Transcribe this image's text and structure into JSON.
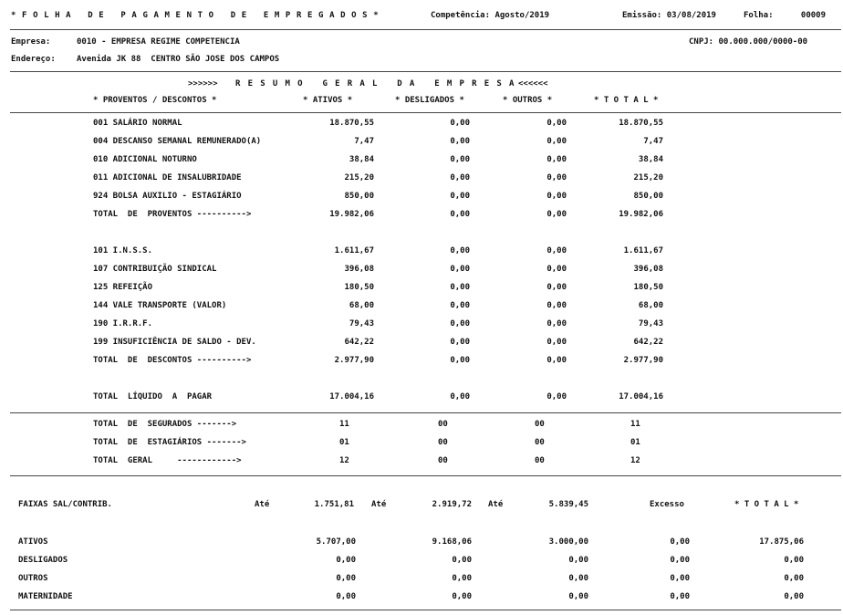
{
  "header": {
    "title": "* F O L H A   D E   P A G A M E N T O   D E   E M P R E G A D O S *",
    "competencia": "Competência: Agosto/2019",
    "emissao": "Emissão: 03/08/2019",
    "folha_label": "Folha:",
    "folha_num": "00009"
  },
  "empresa": {
    "label": "Empresa:",
    "value": "0010 - EMPRESA REGIME COMPETENCIA",
    "cnpj": "CNPJ: 00.000.000/0000-00",
    "endereco_label": "Endereço:",
    "endereco": "Avenida JK 88  CENTRO SÃO JOSE DOS CAMPOS"
  },
  "resumo": {
    "title_open": ">>>>>>",
    "title": "R E S U M O   G E R A L   D A   E M P R E S A",
    "title_close": "<<<<<<",
    "columns": [
      "* PROVENTOS / DESCONTOS *",
      "* ATIVOS *",
      "* DESLIGADOS *",
      "* OUTROS *",
      "* T O T A L *"
    ]
  },
  "proventos": [
    {
      "desc": "001 SALÁRIO NORMAL",
      "ativos": "18.870,55",
      "desligados": "0,00",
      "outros": "0,00",
      "total": "18.870,55"
    },
    {
      "desc": "004 DESCANSO SEMANAL REMUNERADO(A)",
      "ativos": "7,47",
      "desligados": "0,00",
      "outros": "0,00",
      "total": "7,47"
    },
    {
      "desc": "010 ADICIONAL NOTURNO",
      "ativos": "38,84",
      "desligados": "0,00",
      "outros": "0,00",
      "total": "38,84"
    },
    {
      "desc": "011 ADICIONAL DE INSALUBRIDADE",
      "ativos": "215,20",
      "desligados": "0,00",
      "outros": "0,00",
      "total": "215,20"
    },
    {
      "desc": "924 BOLSA AUXILIO - ESTAGIÁRIO",
      "ativos": "850,00",
      "desligados": "0,00",
      "outros": "0,00",
      "total": "850,00"
    },
    {
      "desc": "TOTAL  DE  PROVENTOS ---------->",
      "ativos": "19.982,06",
      "desligados": "0,00",
      "outros": "0,00",
      "total": "19.982,06"
    }
  ],
  "descontos": [
    {
      "desc": "101 I.N.S.S.",
      "ativos": "1.611,67",
      "desligados": "0,00",
      "outros": "0,00",
      "total": "1.611,67"
    },
    {
      "desc": "107 CONTRIBUIÇÃO SINDICAL",
      "ativos": "396,08",
      "desligados": "0,00",
      "outros": "0,00",
      "total": "396,08"
    },
    {
      "desc": "125 REFEIÇÃO",
      "ativos": "180,50",
      "desligados": "0,00",
      "outros": "0,00",
      "total": "180,50"
    },
    {
      "desc": "144 VALE TRANSPORTE (VALOR)",
      "ativos": "68,00",
      "desligados": "0,00",
      "outros": "0,00",
      "total": "68,00"
    },
    {
      "desc": "190 I.R.R.F.",
      "ativos": "79,43",
      "desligados": "0,00",
      "outros": "0,00",
      "total": "79,43"
    },
    {
      "desc": "199 INSUFICIÊNCIA DE SALDO - DEV.",
      "ativos": "642,22",
      "desligados": "0,00",
      "outros": "0,00",
      "total": "642,22"
    },
    {
      "desc": "TOTAL  DE  DESCONTOS ---------->",
      "ativos": "2.977,90",
      "desligados": "0,00",
      "outros": "0,00",
      "total": "2.977,90"
    }
  ],
  "liquido": {
    "desc": "TOTAL  LÍQUIDO  A  PAGAR",
    "ativos": "17.004,16",
    "desligados": "0,00",
    "outros": "0,00",
    "total": "17.004,16"
  },
  "contagens": [
    {
      "desc": "TOTAL  DE  SEGURADOS ------->",
      "ativos": "11",
      "desligados": "00",
      "outros": "00",
      "total": "11"
    },
    {
      "desc": "TOTAL  DE  ESTAGIÁRIOS ------->",
      "ativos": "01",
      "desligados": "00",
      "outros": "00",
      "total": "01"
    },
    {
      "desc": "TOTAL  GERAL     ------------>",
      "ativos": "12",
      "desligados": "00",
      "outros": "00",
      "total": "12"
    }
  ],
  "faixas": {
    "label": "FAIXAS SAL/CONTRIB.",
    "ate_label": "Até",
    "faixa1": "1.751,81",
    "faixa2": "2.919,72",
    "faixa3": "5.839,45",
    "excesso": "Excesso",
    "total_label": "* T O T A L *",
    "rows": [
      {
        "label": "ATIVOS",
        "v1": "5.707,00",
        "v2": "9.168,06",
        "v3": "3.000,00",
        "v4": "0,00",
        "total": "17.875,06"
      },
      {
        "label": "DESLIGADOS",
        "v1": "0,00",
        "v2": "0,00",
        "v3": "0,00",
        "v4": "0,00",
        "total": "0,00"
      },
      {
        "label": "OUTROS",
        "v1": "0,00",
        "v2": "0,00",
        "v3": "0,00",
        "v4": "0,00",
        "total": "0,00"
      },
      {
        "label": "MATERNIDADE",
        "v1": "0,00",
        "v2": "0,00",
        "v3": "0,00",
        "v4": "0,00",
        "total": "0,00"
      }
    ]
  }
}
